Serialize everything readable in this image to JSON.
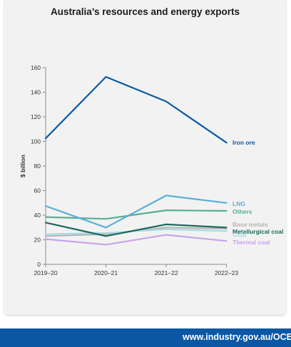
{
  "chart_data": {
    "type": "line",
    "title": "Australia’s resources and energy exports",
    "ylabel": "$ billion",
    "xlabel": "",
    "categories": [
      "2019–20",
      "2020–21",
      "2021–22",
      "2022–23"
    ],
    "ylim": [
      0,
      160
    ],
    "yticks": [
      0,
      20,
      40,
      60,
      80,
      100,
      120,
      140,
      160
    ],
    "grid": false,
    "legend": "direct-labels-right",
    "series": [
      {
        "name": "Iron ore",
        "values": [
          102.5,
          152.5,
          132.5,
          99
        ],
        "color": "#0a5aa8"
      },
      {
        "name": "LNG",
        "values": [
          47.5,
          30,
          56,
          50
        ],
        "color": "#5aafd6"
      },
      {
        "name": "Others",
        "values": [
          38.5,
          37,
          44,
          43.5
        ],
        "color": "#55b090"
      },
      {
        "name": "Base metals",
        "values": [
          23,
          24.5,
          30,
          29
        ],
        "color": "#b5b5b5"
      },
      {
        "name": "Metallurgical coal",
        "values": [
          34,
          23,
          32.5,
          30
        ],
        "color": "#17695a"
      },
      {
        "name": "Gold",
        "values": [
          24.5,
          25.5,
          28.5,
          27
        ],
        "color": "#a9dbe6"
      },
      {
        "name": "Thermal coal",
        "values": [
          20.5,
          16,
          24,
          19
        ],
        "color": "#c8a4ea"
      }
    ]
  },
  "footer": {
    "text": "www.industry.gov.au/OCE",
    "background": "#0b57a4"
  }
}
